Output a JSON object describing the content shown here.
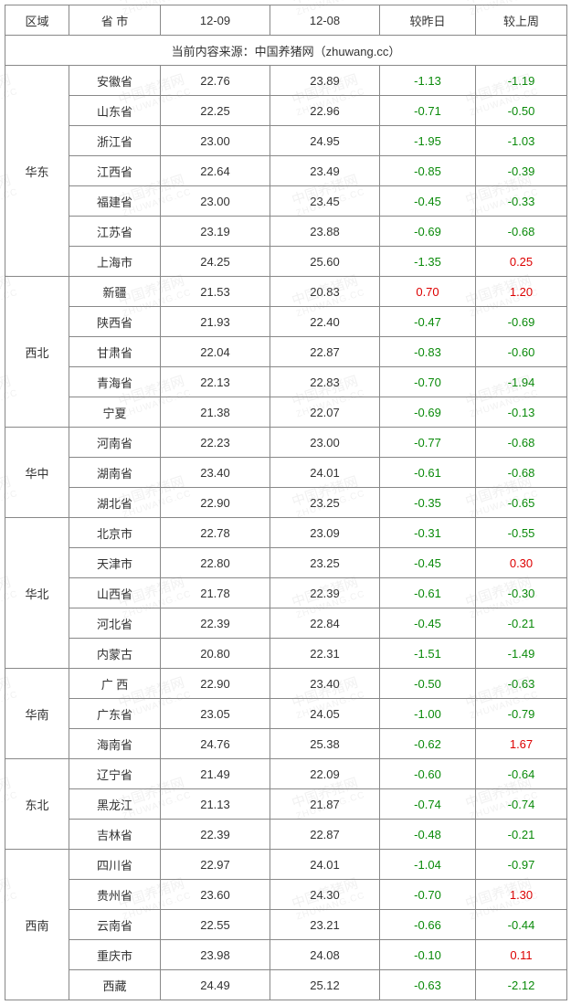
{
  "columns": [
    "区域",
    "省 市",
    "12-09",
    "12-08",
    "较昨日",
    "较上周"
  ],
  "source_line": "当前内容来源：中国养猪网（zhuwang.cc）",
  "watermark_cn": "中国养猪网",
  "watermark_en": "ZHUWANG.CC",
  "neg_color": "#0a8a0a",
  "pos_color": "#d00",
  "regions": [
    {
      "name": "华东",
      "rows": [
        {
          "p": "安徽省",
          "a": "22.76",
          "b": "23.89",
          "dy": "-1.13",
          "dw": "-1.19"
        },
        {
          "p": "山东省",
          "a": "22.25",
          "b": "22.96",
          "dy": "-0.71",
          "dw": "-0.50"
        },
        {
          "p": "浙江省",
          "a": "23.00",
          "b": "24.95",
          "dy": "-1.95",
          "dw": "-1.03"
        },
        {
          "p": "江西省",
          "a": "22.64",
          "b": "23.49",
          "dy": "-0.85",
          "dw": "-0.39"
        },
        {
          "p": "福建省",
          "a": "23.00",
          "b": "23.45",
          "dy": "-0.45",
          "dw": "-0.33"
        },
        {
          "p": "江苏省",
          "a": "23.19",
          "b": "23.88",
          "dy": "-0.69",
          "dw": "-0.68"
        },
        {
          "p": "上海市",
          "a": "24.25",
          "b": "25.60",
          "dy": "-1.35",
          "dw": "0.25"
        }
      ]
    },
    {
      "name": "西北",
      "rows": [
        {
          "p": "新疆",
          "a": "21.53",
          "b": "20.83",
          "dy": "0.70",
          "dw": "1.20"
        },
        {
          "p": "陕西省",
          "a": "21.93",
          "b": "22.40",
          "dy": "-0.47",
          "dw": "-0.69"
        },
        {
          "p": "甘肃省",
          "a": "22.04",
          "b": "22.87",
          "dy": "-0.83",
          "dw": "-0.60"
        },
        {
          "p": "青海省",
          "a": "22.13",
          "b": "22.83",
          "dy": "-0.70",
          "dw": "-1.94"
        },
        {
          "p": "宁夏",
          "a": "21.38",
          "b": "22.07",
          "dy": "-0.69",
          "dw": "-0.13"
        }
      ]
    },
    {
      "name": "华中",
      "rows": [
        {
          "p": "河南省",
          "a": "22.23",
          "b": "23.00",
          "dy": "-0.77",
          "dw": "-0.68"
        },
        {
          "p": "湖南省",
          "a": "23.40",
          "b": "24.01",
          "dy": "-0.61",
          "dw": "-0.68"
        },
        {
          "p": "湖北省",
          "a": "22.90",
          "b": "23.25",
          "dy": "-0.35",
          "dw": "-0.65"
        }
      ]
    },
    {
      "name": "华北",
      "rows": [
        {
          "p": "北京市",
          "a": "22.78",
          "b": "23.09",
          "dy": "-0.31",
          "dw": "-0.55"
        },
        {
          "p": "天津市",
          "a": "22.80",
          "b": "23.25",
          "dy": "-0.45",
          "dw": "0.30"
        },
        {
          "p": "山西省",
          "a": "21.78",
          "b": "22.39",
          "dy": "-0.61",
          "dw": "-0.30"
        },
        {
          "p": "河北省",
          "a": "22.39",
          "b": "22.84",
          "dy": "-0.45",
          "dw": "-0.21"
        },
        {
          "p": "内蒙古",
          "a": "20.80",
          "b": "22.31",
          "dy": "-1.51",
          "dw": "-1.49"
        }
      ]
    },
    {
      "name": "华南",
      "rows": [
        {
          "p": "广 西",
          "a": "22.90",
          "b": "23.40",
          "dy": "-0.50",
          "dw": "-0.63"
        },
        {
          "p": "广东省",
          "a": "23.05",
          "b": "24.05",
          "dy": "-1.00",
          "dw": "-0.79"
        },
        {
          "p": "海南省",
          "a": "24.76",
          "b": "25.38",
          "dy": "-0.62",
          "dw": "1.67"
        }
      ]
    },
    {
      "name": "东北",
      "rows": [
        {
          "p": "辽宁省",
          "a": "21.49",
          "b": "22.09",
          "dy": "-0.60",
          "dw": "-0.64"
        },
        {
          "p": "黑龙江",
          "a": "21.13",
          "b": "21.87",
          "dy": "-0.74",
          "dw": "-0.74"
        },
        {
          "p": "吉林省",
          "a": "22.39",
          "b": "22.87",
          "dy": "-0.48",
          "dw": "-0.21"
        }
      ]
    },
    {
      "name": "西南",
      "rows": [
        {
          "p": "四川省",
          "a": "22.97",
          "b": "24.01",
          "dy": "-1.04",
          "dw": "-0.97"
        },
        {
          "p": "贵州省",
          "a": "23.60",
          "b": "24.30",
          "dy": "-0.70",
          "dw": "1.30"
        },
        {
          "p": "云南省",
          "a": "22.55",
          "b": "23.21",
          "dy": "-0.66",
          "dw": "-0.44"
        },
        {
          "p": "重庆市",
          "a": "23.98",
          "b": "24.08",
          "dy": "-0.10",
          "dw": "0.11"
        },
        {
          "p": "西藏",
          "a": "24.49",
          "b": "25.12",
          "dy": "-0.63",
          "dw": "-2.12"
        }
      ]
    }
  ]
}
